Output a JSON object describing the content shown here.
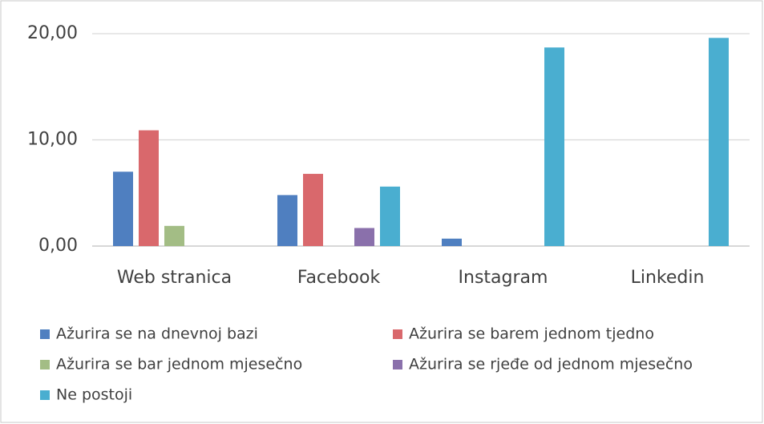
{
  "chart_data": {
    "type": "bar",
    "categories": [
      "Web stranica",
      "Facebook",
      "Instagram",
      "Linkedin"
    ],
    "series": [
      {
        "name": "Ažurira se na dnevnoj bazi",
        "color": "#4f7fc0",
        "values": [
          7.0,
          4.8,
          0.7,
          0
        ]
      },
      {
        "name": "Ažurira se barem jednom tjedno",
        "color": "#d9686c",
        "values": [
          10.9,
          6.8,
          0,
          0
        ]
      },
      {
        "name": "Ažurira se bar jednom mjesečno",
        "color": "#a3bd85",
        "values": [
          1.9,
          0,
          0,
          0
        ]
      },
      {
        "name": "Ažurira se rjeđe od jednom mjesečno",
        "color": "#8a70ab",
        "values": [
          0,
          1.7,
          0,
          0
        ]
      },
      {
        "name": "Ne postoji",
        "color": "#4aaed0",
        "values": [
          0,
          5.6,
          18.7,
          19.6
        ]
      }
    ],
    "ylim": [
      0,
      20
    ],
    "yticks": [
      {
        "value": 0,
        "label": "0,00"
      },
      {
        "value": 10,
        "label": "10,00"
      },
      {
        "value": 20,
        "label": "20,00"
      }
    ],
    "grid": true,
    "legend": "bottom"
  }
}
